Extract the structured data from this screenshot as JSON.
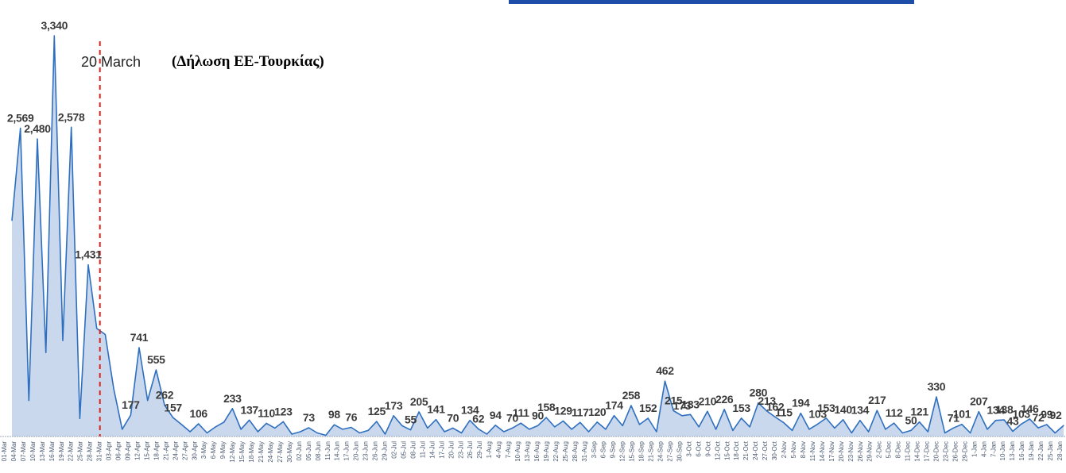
{
  "chart_data": {
    "type": "area",
    "annotation_date": "20 March",
    "annotation_note": "(Δήλωση ΕΕ-Τουρκίας)",
    "colors": {
      "fill": "#c9d8ec",
      "line": "#2f6fbf",
      "marker": "#e0201b",
      "top_banner": "#1f4ea8"
    },
    "ylim": [
      0,
      3400
    ],
    "x_ticks": [
      "01-Mar",
      "04-Mar",
      "07-Mar",
      "10-Mar",
      "13-Mar",
      "16-Mar",
      "19-Mar",
      "22-Mar",
      "25-Mar",
      "28-Mar",
      "31-Mar",
      "03-Apr",
      "06-Apr",
      "09-Apr",
      "12-Apr",
      "15-Apr",
      "18-Apr",
      "21-Apr",
      "24-Apr",
      "27-Apr",
      "30-Apr",
      "3-May",
      "6-May",
      "9-May",
      "12-May",
      "15-May",
      "18-May",
      "21-May",
      "24-May",
      "27-May",
      "30-May",
      "02-Jun",
      "05-Jun",
      "08-Jun",
      "11-Jun",
      "14-Jun",
      "17-Jun",
      "20-Jun",
      "23-Jun",
      "26-Jun",
      "29-Jun",
      "02-Jul",
      "05-Jul",
      "08-Jul",
      "11-Jul",
      "14-Jul",
      "17-Jul",
      "20-Jul",
      "23-Jul",
      "26-Jul",
      "29-Jul",
      "1-Aug",
      "4-Aug",
      "7-Aug",
      "10-Aug",
      "13-Aug",
      "16-Aug",
      "19-Aug",
      "22-Aug",
      "25-Aug",
      "28-Aug",
      "31-Aug",
      "3-Sep",
      "6-Sep",
      "9-Sep",
      "12-Sep",
      "15-Sep",
      "18-Sep",
      "21-Sep",
      "24-Sep",
      "27-Sep",
      "30-Sep",
      "3-Oct",
      "6-Oct",
      "9-Oct",
      "12-Oct",
      "15-Oct",
      "18-Oct",
      "21-Oct",
      "24-Oct",
      "27-Oct",
      "30-Oct",
      "2-Nov",
      "5-Nov",
      "8-Nov",
      "11-Nov",
      "14-Nov",
      "17-Nov",
      "20-Nov",
      "23-Nov",
      "26-Nov",
      "29-Nov",
      "2-Dec",
      "5-Dec",
      "8-Dec",
      "11-Dec",
      "14-Dec",
      "17-Dec",
      "20-Dec",
      "23-Dec",
      "26-Dec",
      "29-Dec",
      "1-Jan",
      "4-Jan",
      "7-Jan",
      "10-Jan",
      "13-Jan",
      "16-Jan",
      "19-Jan",
      "22-Jan",
      "25-Jan",
      "28-Jan"
    ],
    "series": [
      {
        "values": [
          1800,
          2569,
          300,
          2480,
          700,
          3340,
          800,
          2578,
          150,
          1431,
          900,
          850,
          400,
          60,
          177,
          741,
          300,
          555,
          262,
          157,
          100,
          40,
          106,
          30,
          80,
          120,
          233,
          60,
          137,
          40,
          110,
          70,
          123,
          20,
          40,
          73,
          30,
          10,
          98,
          60,
          76,
          30,
          50,
          125,
          20,
          173,
          90,
          55,
          205,
          70,
          141,
          40,
          70,
          30,
          134,
          62,
          20,
          94,
          40,
          70,
          111,
          60,
          90,
          158,
          80,
          129,
          60,
          117,
          40,
          120,
          60,
          174,
          90,
          258,
          100,
          152,
          40,
          462,
          215,
          173,
          183,
          80,
          210,
          60,
          226,
          50,
          153,
          80,
          280,
          213,
          162,
          115,
          50,
          194,
          60,
          103,
          153,
          70,
          140,
          30,
          134,
          40,
          217,
          60,
          112,
          30,
          50,
          121,
          40,
          330,
          30,
          71,
          101,
          30,
          207,
          60,
          134,
          138,
          43,
          103,
          146,
          72,
          99,
          30,
          92
        ]
      }
    ],
    "point_labels": [
      {
        "i": 1,
        "text": "2,569"
      },
      {
        "i": 3,
        "text": "2,480"
      },
      {
        "i": 5,
        "text": "3,340"
      },
      {
        "i": 7,
        "text": "2,578"
      },
      {
        "i": 9,
        "text": "1,431"
      },
      {
        "i": 14,
        "text": "177"
      },
      {
        "i": 15,
        "text": "741"
      },
      {
        "i": 17,
        "text": "555"
      },
      {
        "i": 18,
        "text": "262"
      },
      {
        "i": 19,
        "text": "157"
      },
      {
        "i": 22,
        "text": "106"
      },
      {
        "i": 26,
        "text": "233"
      },
      {
        "i": 28,
        "text": "137"
      },
      {
        "i": 30,
        "text": "110"
      },
      {
        "i": 32,
        "text": "123"
      },
      {
        "i": 35,
        "text": "73"
      },
      {
        "i": 38,
        "text": "98"
      },
      {
        "i": 40,
        "text": "76"
      },
      {
        "i": 43,
        "text": "125"
      },
      {
        "i": 45,
        "text": "173"
      },
      {
        "i": 47,
        "text": "55"
      },
      {
        "i": 48,
        "text": "205"
      },
      {
        "i": 50,
        "text": "141"
      },
      {
        "i": 52,
        "text": "70"
      },
      {
        "i": 54,
        "text": "134"
      },
      {
        "i": 55,
        "text": "62"
      },
      {
        "i": 57,
        "text": "94"
      },
      {
        "i": 59,
        "text": "70"
      },
      {
        "i": 60,
        "text": "111"
      },
      {
        "i": 62,
        "text": "90"
      },
      {
        "i": 63,
        "text": "158"
      },
      {
        "i": 65,
        "text": "129"
      },
      {
        "i": 67,
        "text": "117"
      },
      {
        "i": 69,
        "text": "120"
      },
      {
        "i": 71,
        "text": "174"
      },
      {
        "i": 73,
        "text": "258"
      },
      {
        "i": 75,
        "text": "152"
      },
      {
        "i": 77,
        "text": "462"
      },
      {
        "i": 78,
        "text": "215"
      },
      {
        "i": 79,
        "text": "173"
      },
      {
        "i": 80,
        "text": "183"
      },
      {
        "i": 82,
        "text": "210"
      },
      {
        "i": 84,
        "text": "226"
      },
      {
        "i": 86,
        "text": "153"
      },
      {
        "i": 88,
        "text": "280"
      },
      {
        "i": 89,
        "text": "213"
      },
      {
        "i": 90,
        "text": "162"
      },
      {
        "i": 91,
        "text": "115"
      },
      {
        "i": 93,
        "text": "194"
      },
      {
        "i": 95,
        "text": "103"
      },
      {
        "i": 96,
        "text": "153"
      },
      {
        "i": 98,
        "text": "140"
      },
      {
        "i": 100,
        "text": "134"
      },
      {
        "i": 102,
        "text": "217"
      },
      {
        "i": 104,
        "text": "112"
      },
      {
        "i": 106,
        "text": "50"
      },
      {
        "i": 107,
        "text": "121"
      },
      {
        "i": 109,
        "text": "330"
      },
      {
        "i": 111,
        "text": "71"
      },
      {
        "i": 112,
        "text": "101"
      },
      {
        "i": 114,
        "text": "207"
      },
      {
        "i": 116,
        "text": "134"
      },
      {
        "i": 117,
        "text": "138"
      },
      {
        "i": 118,
        "text": "43"
      },
      {
        "i": 119,
        "text": "103"
      },
      {
        "i": 120,
        "text": "146"
      },
      {
        "i": 121,
        "text": "72"
      },
      {
        "i": 122,
        "text": "99"
      },
      {
        "i": 124,
        "text": "92"
      }
    ],
    "marker_index": 10
  }
}
